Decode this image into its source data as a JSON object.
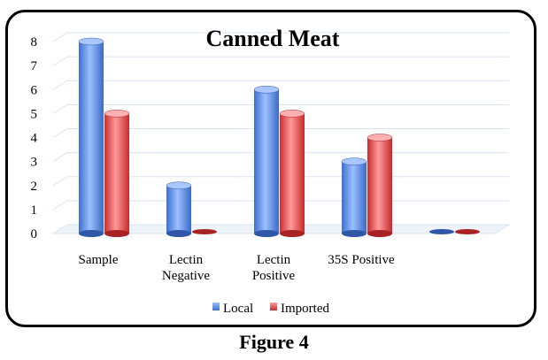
{
  "chart_data": {
    "type": "bar",
    "title": "Canned Meat",
    "categories": [
      "Sample",
      "Lectin\nNegative",
      "Lectin\nPositive",
      "35S Positive",
      ""
    ],
    "series": [
      {
        "name": "Local",
        "values": [
          8,
          2,
          6,
          3,
          0
        ],
        "color": "#5b8ee6"
      },
      {
        "name": "Imported",
        "values": [
          5,
          0,
          5,
          4,
          0
        ],
        "color": "#e0484a"
      }
    ],
    "ylim": [
      0,
      8
    ],
    "yticks": [
      "0",
      "1",
      "2",
      "3",
      "4",
      "5",
      "6",
      "7",
      "8"
    ],
    "grid": true,
    "legend_position": "bottom"
  },
  "caption": "Figure 4"
}
